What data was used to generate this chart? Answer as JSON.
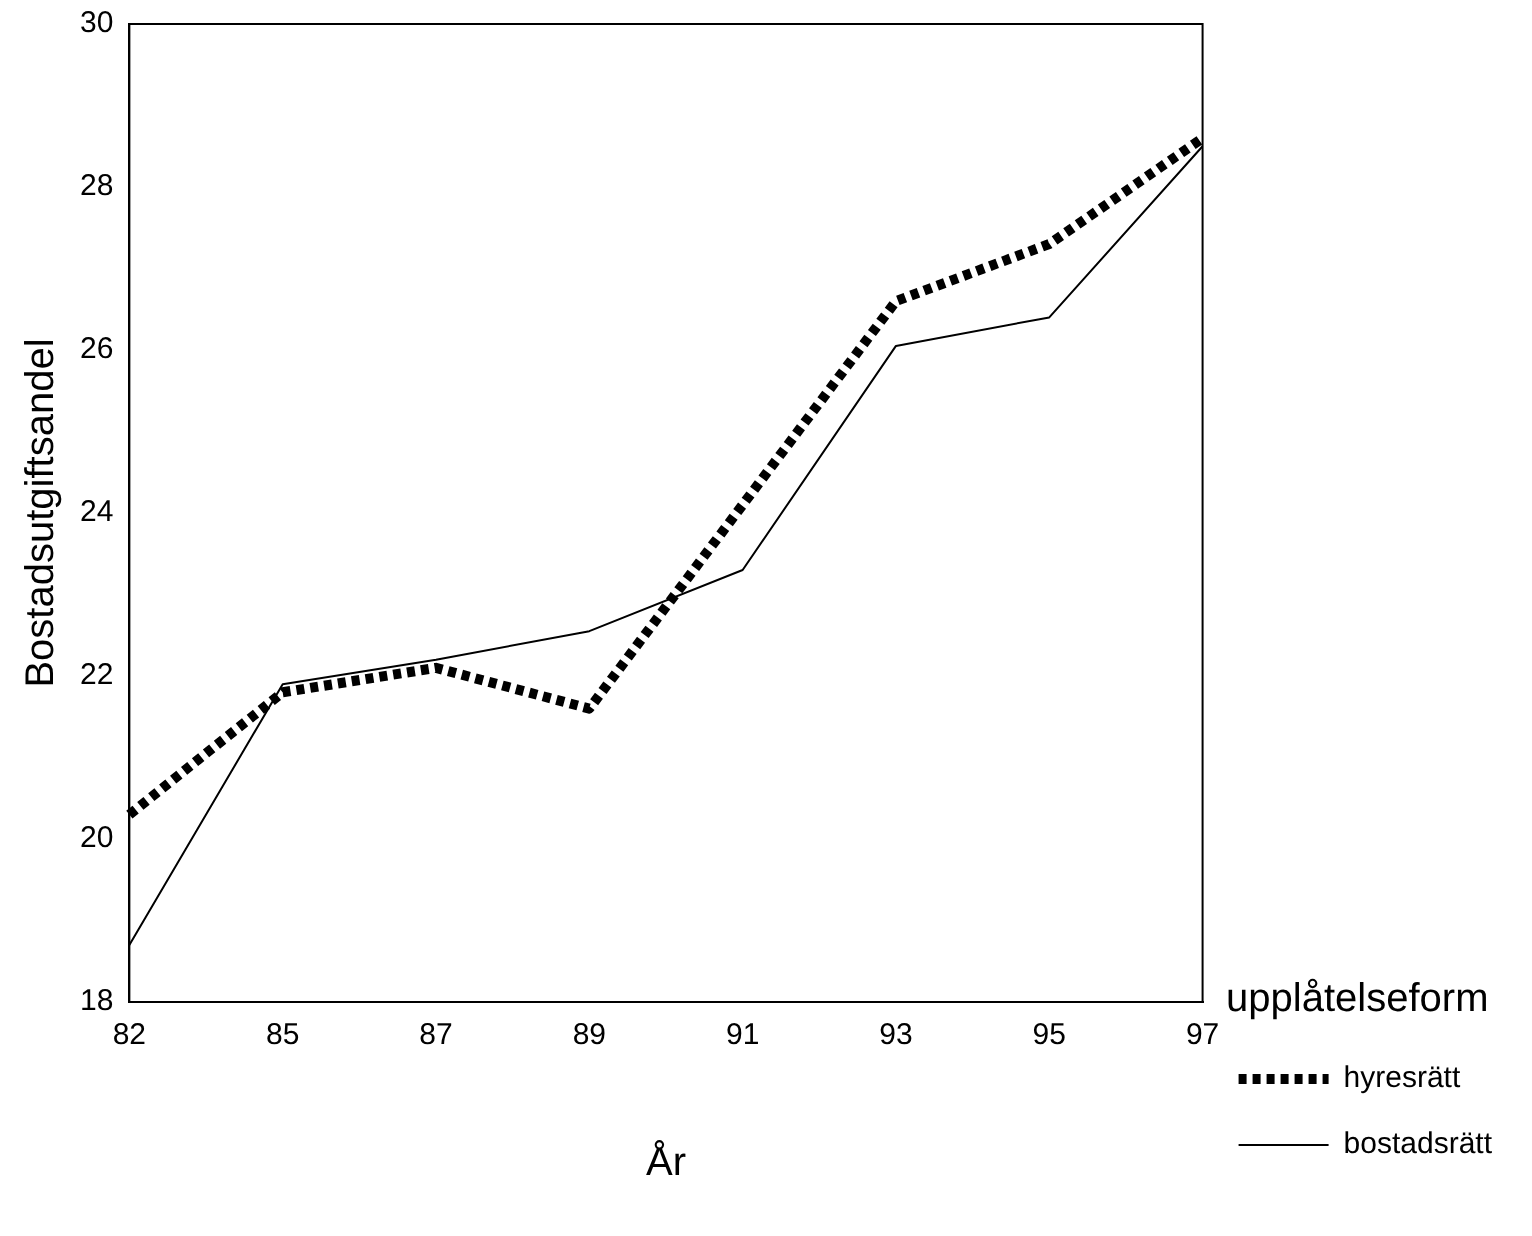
{
  "chart_data": {
    "type": "line",
    "xlabel": "År",
    "ylabel": "Bostadsutgiftsandel",
    "legend_title": "upplåtelseform",
    "legend": "right",
    "grid": false,
    "marker": "none",
    "categories": [
      "82",
      "85",
      "87",
      "89",
      "91",
      "93",
      "95",
      "97"
    ],
    "ylim": [
      18,
      30
    ],
    "yticks": [
      18,
      20,
      22,
      24,
      26,
      28,
      30
    ],
    "series": [
      {
        "name": "hyresrätt",
        "color": "#000000",
        "line_style": "dashed",
        "values": [
          20.3,
          21.8,
          22.1,
          21.6,
          24.1,
          26.6,
          27.3,
          28.6
        ]
      },
      {
        "name": "bostadsrätt",
        "color": "#000000",
        "line_style": "solid",
        "values": [
          18.7,
          21.9,
          22.2,
          22.55,
          23.3,
          26.05,
          26.4,
          28.5
        ]
      }
    ]
  }
}
